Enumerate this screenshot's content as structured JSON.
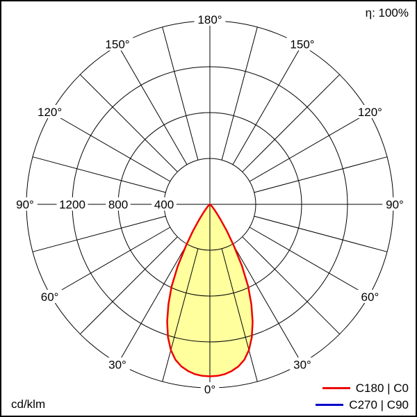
{
  "chart_data": {
    "type": "polar",
    "diagram": "luminous-intensity-distribution",
    "unit_label": "cd/klm",
    "efficiency_label": "η: 100%",
    "radial_ticks": [
      400,
      800,
      1200
    ],
    "radial_max": 1600,
    "ring_step_cd": 400,
    "spoke_step_deg": 15,
    "angle_labels_deg": [
      0,
      30,
      60,
      90,
      120,
      150,
      180
    ],
    "angle_label_suffix": "°",
    "grid_color": "#000000",
    "series": [
      {
        "name": "C180 | C0",
        "color": "#ee0000",
        "fill": "#ffff9e",
        "symmetric": true,
        "gamma_deg": [
          0,
          2.5,
          5,
          7.5,
          10,
          12.5,
          15,
          17.5,
          20,
          22.5,
          25,
          27.5,
          30,
          32.5,
          35,
          37.5,
          40,
          45,
          50,
          55,
          60,
          65,
          90
        ],
        "intensity_cd_klm": [
          1500,
          1497,
          1487,
          1465,
          1435,
          1388,
          1315,
          1215,
          1090,
          945,
          790,
          605,
          420,
          275,
          165,
          100,
          60,
          28,
          12,
          5,
          2,
          0,
          0
        ]
      }
    ],
    "legend": [
      {
        "label": "C180 | C0",
        "color": "#ee0000"
      },
      {
        "label": "C270 | C90",
        "color": "#0000cc"
      }
    ]
  }
}
